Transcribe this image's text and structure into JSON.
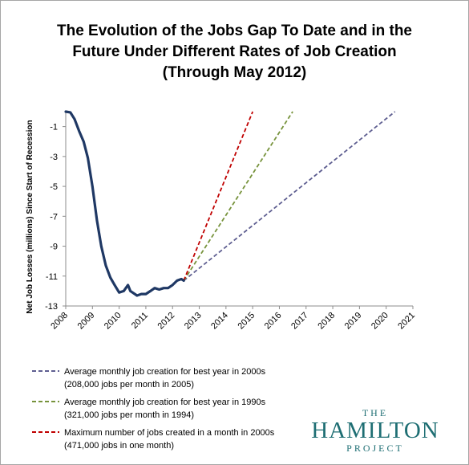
{
  "title": {
    "line1": "The Evolution of the Jobs Gap To Date and in the",
    "line2": "Future Under Different Rates of Job Creation",
    "line3": "(Through May 2012)"
  },
  "chart_data": {
    "type": "line",
    "ylabel": "Net Job Losses (millions) Since Start of Recession",
    "xlabel": "",
    "xlim": [
      2008,
      2021
    ],
    "ylim": [
      -13,
      0
    ],
    "x_ticks": [
      "2008",
      "2009",
      "2010",
      "2011",
      "2012",
      "2013",
      "2014",
      "2015",
      "2016",
      "2017",
      "2018",
      "2019",
      "2020",
      "2021"
    ],
    "y_ticks": [
      -1,
      -3,
      -5,
      -7,
      -9,
      -11,
      -13
    ],
    "y_tick_labels": [
      "-1",
      "-3",
      "-5",
      "-7",
      "-9",
      "-11",
      "-13"
    ],
    "grid": false,
    "legend_position": "bottom-left",
    "series": [
      {
        "key": "actual",
        "color": "#1f3864",
        "style": "solid",
        "x": [
          2008.0,
          2008.17,
          2008.33,
          2008.5,
          2008.67,
          2008.83,
          2009.0,
          2009.17,
          2009.33,
          2009.5,
          2009.67,
          2009.83,
          2010.0,
          2010.17,
          2010.33,
          2010.42,
          2010.5,
          2010.67,
          2010.83,
          2011.0,
          2011.17,
          2011.33,
          2011.5,
          2011.67,
          2011.83,
          2012.0,
          2012.17,
          2012.33,
          2012.42
        ],
        "y": [
          0.0,
          -0.05,
          -0.5,
          -1.3,
          -2.0,
          -3.1,
          -5.0,
          -7.3,
          -9.0,
          -10.3,
          -11.1,
          -11.6,
          -12.1,
          -12.0,
          -11.6,
          -12.0,
          -12.1,
          -12.3,
          -12.2,
          -12.2,
          -12.0,
          -11.8,
          -11.9,
          -11.8,
          -11.8,
          -11.6,
          -11.3,
          -11.2,
          -11.3
        ]
      },
      {
        "name": "Average monthly job creation for best year in 2000s (208,000 jobs per month in 2005)",
        "color": "#5f5f91",
        "style": "dashed",
        "x": [
          2012.42,
          2020.33
        ],
        "y": [
          -11.3,
          0
        ]
      },
      {
        "name": "Average monthly job creation for best year in 1990s (321,000 jobs per month in 1994)",
        "color": "#77933c",
        "style": "dashed",
        "x": [
          2012.42,
          2016.5
        ],
        "y": [
          -11.3,
          0
        ]
      },
      {
        "name": "Maximum number of jobs created in a month in 2000s (471,000 jobs in one month)",
        "color": "#c00000",
        "style": "dashed",
        "x": [
          2012.42,
          2015.0
        ],
        "y": [
          -11.3,
          0
        ]
      }
    ]
  },
  "legend": [
    {
      "line1": "Average monthly job creation for best year in 2000s",
      "line2": "(208,000 jobs per month in 2005)",
      "color": "#5f5f91"
    },
    {
      "line1": "Average monthly job creation for best year in 1990s",
      "line2": "(321,000 jobs per month in 1994)",
      "color": "#77933c"
    },
    {
      "line1": "Maximum number of jobs created in a month in 2000s",
      "line2": "(471,000 jobs in one month)",
      "color": "#c00000"
    }
  ],
  "logo": {
    "top": "THE",
    "middle": "HAMILTON",
    "bottom": "PROJECT",
    "color": "#1e6e73"
  }
}
